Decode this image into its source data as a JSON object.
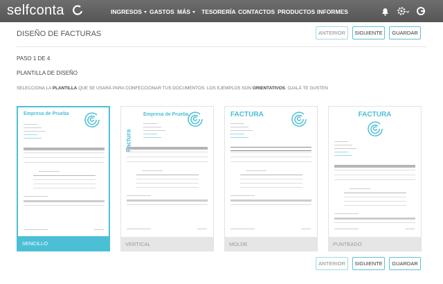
{
  "nav": {
    "logo": "selfconta",
    "menu": [
      {
        "label": "INGRESOS",
        "dropdown": true
      },
      {
        "label": "GASTOS"
      },
      {
        "label": "MÁS",
        "dropdown": true
      },
      {
        "label": "TESORERÍA"
      },
      {
        "label": "CONTACTOS"
      },
      {
        "label": "PRODUCTOS"
      },
      {
        "label": "INFORMES"
      }
    ]
  },
  "header": {
    "title": "DISEÑO DE FACTURAS",
    "buttons": [
      "ANTERIOR",
      "SIGUIENTE",
      "GUARDAR"
    ]
  },
  "step": "PASO 1 DE 4",
  "section": "PLANTILLA DE DISEÑO",
  "description": [
    {
      "text": "SELECCIONA LA "
    },
    {
      "text": "PLANTILLA",
      "bold": true
    },
    {
      "text": " QUE SE USARÁ PARA CONFECCIONAR TUS DOCUMENTOS. LOS EJEMPLOS SON "
    },
    {
      "text": "ORIENTATIVOS",
      "bold": true
    },
    {
      "text": ". OJALÁ TE GUSTEN"
    }
  ],
  "templates": [
    {
      "label": "SENCILLO",
      "heading": "Empresa de Prueba",
      "selected": true
    },
    {
      "label": "VERTICAL",
      "heading": "Empresa de Prueba",
      "side": "Factura"
    },
    {
      "label": "MOLDE",
      "heading": "FACTURA"
    },
    {
      "label": "PUNTEADO",
      "heading": "FACTURA",
      "centered": true
    }
  ],
  "footer": {
    "buttons": [
      "ANTERIOR",
      "SIGUIENTE",
      "GUARDAR"
    ]
  }
}
